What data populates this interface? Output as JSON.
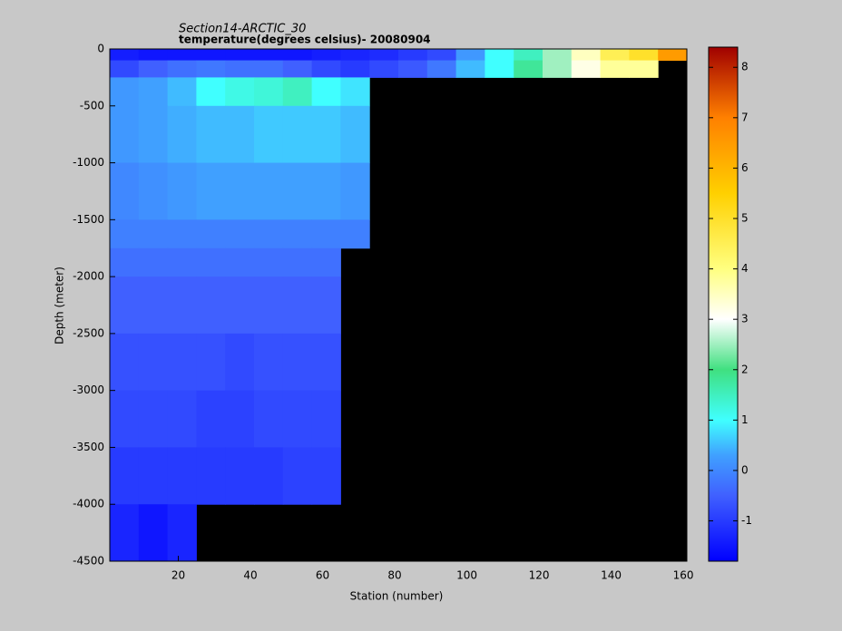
{
  "chart_data": {
    "type": "heatmap",
    "title": "Section14-ARCTIC_30",
    "subtitle": "temperature(degrees  celsius)- 20080904",
    "x_label": "Station (number)",
    "y_label": "Depth (meter)",
    "xlim": [
      1,
      161
    ],
    "ylim": [
      -4500,
      0
    ],
    "xticks": [
      20,
      40,
      60,
      80,
      100,
      120,
      140,
      160
    ],
    "yticks": [
      0,
      -500,
      -1000,
      -1500,
      -2000,
      -2500,
      -3000,
      -3500,
      -4000,
      -4500
    ],
    "x_edges": [
      1,
      9,
      17,
      25,
      33,
      41,
      49,
      57,
      65,
      73,
      81,
      89,
      97,
      105,
      113,
      121,
      129,
      137,
      145,
      153,
      161
    ],
    "y_edges": [
      0,
      -100,
      -250,
      -500,
      -1000,
      -1500,
      -1750,
      -2000,
      -2500,
      -3000,
      -3500,
      -4000,
      -4500
    ],
    "z": [
      [
        -1.4,
        -1.5,
        -1.5,
        -1.5,
        -1.5,
        -1.5,
        -1.5,
        -1.4,
        -1.3,
        -1.2,
        -1.0,
        -0.8,
        0.2,
        1.0,
        1.5,
        2.5,
        3.5,
        4.5,
        5.0,
        6.5
      ],
      [
        -0.8,
        -0.5,
        -0.3,
        -0.2,
        -0.3,
        -0.3,
        -0.5,
        -0.8,
        -1.0,
        -0.8,
        -0.6,
        -0.2,
        0.5,
        1.0,
        1.8,
        2.5,
        3.2,
        3.8,
        3.8,
        null
      ],
      [
        0.2,
        0.3,
        0.5,
        1.0,
        1.2,
        1.3,
        1.5,
        1.0,
        0.8,
        null,
        null,
        null,
        null,
        null,
        null,
        null,
        null,
        null,
        null,
        null
      ],
      [
        0.2,
        0.3,
        0.4,
        0.5,
        0.5,
        0.6,
        0.6,
        0.6,
        0.5,
        null,
        null,
        null,
        null,
        null,
        null,
        null,
        null,
        null,
        null,
        null
      ],
      [
        0.0,
        0.1,
        0.2,
        0.3,
        0.3,
        0.3,
        0.3,
        0.3,
        0.2,
        null,
        null,
        null,
        null,
        null,
        null,
        null,
        null,
        null,
        null,
        null
      ],
      [
        -0.1,
        -0.1,
        -0.1,
        -0.1,
        -0.1,
        -0.1,
        -0.1,
        -0.1,
        -0.1,
        null,
        null,
        null,
        null,
        null,
        null,
        null,
        null,
        null,
        null,
        null
      ],
      [
        -0.3,
        -0.3,
        -0.3,
        -0.3,
        -0.3,
        -0.3,
        -0.3,
        -0.3,
        null,
        null,
        null,
        null,
        null,
        null,
        null,
        null,
        null,
        null,
        null,
        null
      ],
      [
        -0.5,
        -0.5,
        -0.5,
        -0.5,
        -0.5,
        -0.5,
        -0.5,
        -0.5,
        null,
        null,
        null,
        null,
        null,
        null,
        null,
        null,
        null,
        null,
        null,
        null
      ],
      [
        -0.7,
        -0.7,
        -0.7,
        -0.7,
        -0.8,
        -0.7,
        -0.7,
        -0.7,
        null,
        null,
        null,
        null,
        null,
        null,
        null,
        null,
        null,
        null,
        null,
        null
      ],
      [
        -0.8,
        -0.8,
        -0.8,
        -0.9,
        -0.9,
        -0.8,
        -0.8,
        -0.8,
        null,
        null,
        null,
        null,
        null,
        null,
        null,
        null,
        null,
        null,
        null,
        null
      ],
      [
        -1.0,
        -1.0,
        -1.0,
        -1.0,
        -1.0,
        -1.0,
        -0.9,
        -0.9,
        null,
        null,
        null,
        null,
        null,
        null,
        null,
        null,
        null,
        null,
        null,
        null
      ],
      [
        -1.3,
        -1.5,
        -1.3,
        null,
        null,
        null,
        null,
        null,
        null,
        null,
        null,
        null,
        null,
        null,
        null,
        null,
        null,
        null,
        null,
        null
      ]
    ],
    "missing_color": "#000000",
    "zlim": [
      -1.8,
      8.4
    ],
    "zticks": [
      -1,
      0,
      1,
      2,
      3,
      4,
      5,
      6,
      7,
      8
    ],
    "colormap": [
      {
        "value": -1.8,
        "color": "#0000ff"
      },
      {
        "value": -0.5,
        "color": "#4060ff"
      },
      {
        "value": 0.3,
        "color": "#40a0ff"
      },
      {
        "value": 1.0,
        "color": "#40ffff"
      },
      {
        "value": 2.0,
        "color": "#40e080"
      },
      {
        "value": 3.0,
        "color": "#ffffff"
      },
      {
        "value": 4.0,
        "color": "#ffff80"
      },
      {
        "value": 5.5,
        "color": "#ffd000"
      },
      {
        "value": 7.0,
        "color": "#ff8000"
      },
      {
        "value": 8.4,
        "color": "#a00000"
      }
    ]
  }
}
